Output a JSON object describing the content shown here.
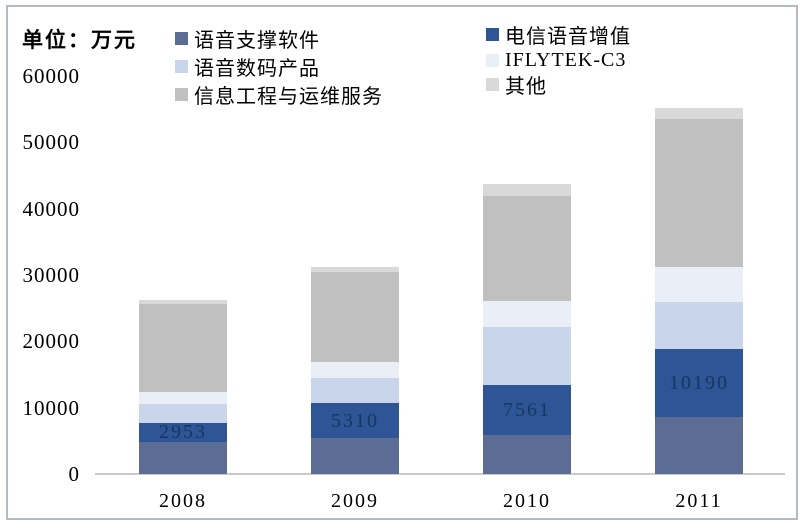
{
  "unit_label": "单位：万元",
  "chart_data": {
    "type": "bar",
    "stacked": true,
    "title": "",
    "unit": "万元",
    "categories": [
      "2008",
      "2009",
      "2010",
      "2011"
    ],
    "series": [
      {
        "name": "语音支撑软件",
        "color": "#5b6d94",
        "values": [
          4800,
          5400,
          5900,
          8600
        ]
      },
      {
        "name": "电信语音增值",
        "color": "#2e5596",
        "values": [
          2953,
          5310,
          7561,
          10190
        ],
        "data_labels": [
          "2953",
          "5310",
          "7561",
          "10190"
        ]
      },
      {
        "name": "语音数码产品",
        "color": "#c8d5ea",
        "values": [
          2800,
          3800,
          8700,
          7100
        ]
      },
      {
        "name": "IFLYTEK-C3",
        "color": "#e9eef7",
        "values": [
          1800,
          2300,
          3900,
          5300
        ]
      },
      {
        "name": "信息工程与运维服务",
        "color": "#c1c0c0",
        "values": [
          13200,
          13600,
          15800,
          22400
        ]
      },
      {
        "name": "其他",
        "color": "#d9d9d9",
        "values": [
          750,
          800,
          1800,
          1600
        ]
      }
    ],
    "ylim": [
      0,
      60000
    ],
    "ytick_labels": [
      "0",
      "10000",
      "20000",
      "30000",
      "40000",
      "50000",
      "60000"
    ],
    "ytick_values": [
      0,
      10000,
      20000,
      30000,
      40000,
      50000,
      60000
    ],
    "grid": false,
    "legend_position": "top",
    "legend_columns": [
      [
        "语音支撑软件",
        "语音数码产品",
        "信息工程与运维服务"
      ],
      [
        "电信语音增值",
        "IFLYTEK-C3",
        "其他"
      ]
    ],
    "colors": {
      "data_label": "#17375e",
      "axis_line": "#c9c9c9",
      "text": "#000000",
      "frame": "#b3bac2",
      "background": "#ffffff"
    }
  }
}
